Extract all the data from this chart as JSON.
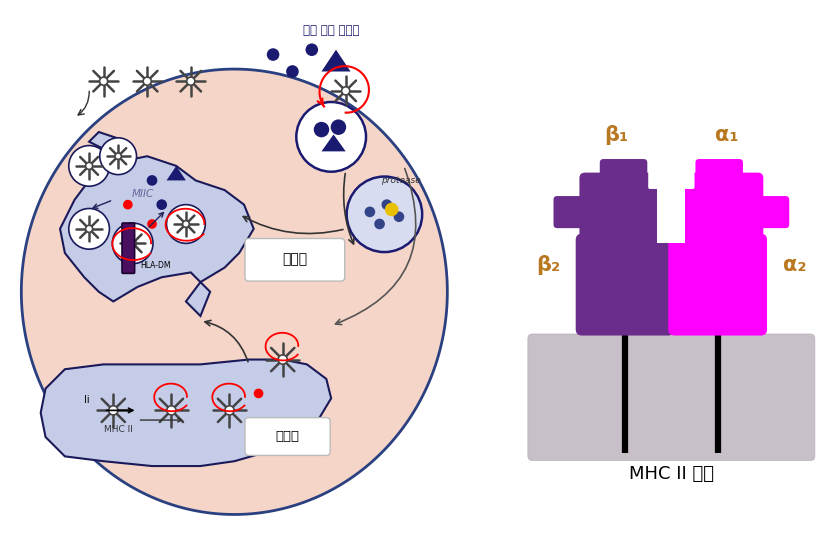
{
  "bg_color": "#ffffff",
  "cell_bg": "#f5d5c8",
  "cell_border": "#2a4080",
  "organelle_bg": "#c5cce8",
  "organelle_border": "#1a1a5a",
  "endosome_text": "엔도좀",
  "vesicle_text": "소포체",
  "outside_text": "세폄 밖의 단백질",
  "protease_text": "protease",
  "miic_text": "MIIC",
  "hladm_text": "HLA-DM",
  "mhc2_text": "MHC II",
  "mhc_title": "MHC II 구조",
  "purple_color": "#6b2d8b",
  "magenta_color": "#ff00ff",
  "membrane_color": "#c8c0c8",
  "label_color": "#b87820",
  "beta1_label": "β₁",
  "alpha1_label": "α₁",
  "beta2_label": "β₂",
  "alpha2_label": "α₂",
  "dark_blue": "#1a1a70",
  "navy": "#22225a",
  "yellow_dot": "#e8c000",
  "receptor_color": "#aaaaaa",
  "receptor_edge": "#555555"
}
